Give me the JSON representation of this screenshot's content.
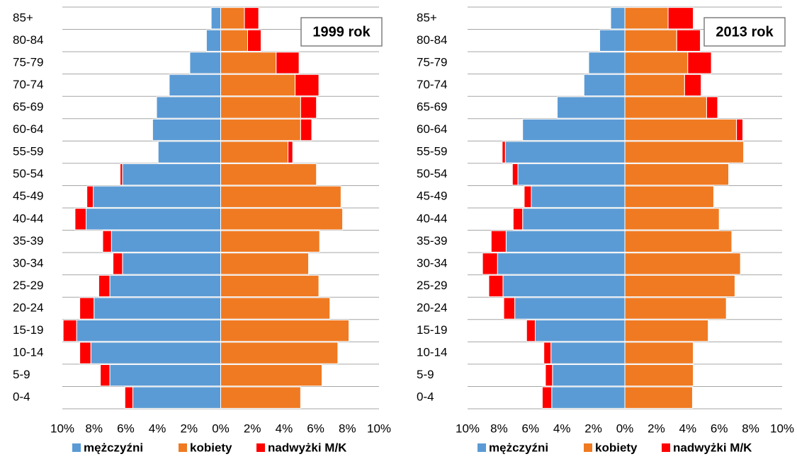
{
  "chart_data": [
    {
      "type": "pyramid",
      "title": "1999 rok",
      "categories": [
        "0-4",
        "5-9",
        "10-14",
        "15-19",
        "20-24",
        "25-29",
        "30-34",
        "35-39",
        "40-44",
        "45-49",
        "50-54",
        "55-59",
        "60-64",
        "65-69",
        "70-74",
        "75-79",
        "80-84",
        "85+"
      ],
      "series": [
        {
          "name": "mężczyźni",
          "color": "#5b9bd5",
          "values": [
            -5.55,
            -7.0,
            -8.2,
            -9.1,
            -8.0,
            -7.0,
            -6.2,
            -6.9,
            -8.5,
            -8.05,
            -6.2,
            -3.95,
            -4.3,
            -4.05,
            -3.25,
            -1.95,
            -0.9,
            -0.6
          ]
        },
        {
          "name": "kobiety",
          "color": "#f07a22",
          "values": [
            5.05,
            6.4,
            7.4,
            8.1,
            6.9,
            6.2,
            5.55,
            6.25,
            7.7,
            7.6,
            6.05,
            4.25,
            5.05,
            5.05,
            4.7,
            3.5,
            1.7,
            1.5
          ]
        },
        {
          "name": "nadwyżki M/K",
          "color": "#ff0000",
          "values": [
            -0.5,
            -0.6,
            -0.7,
            -0.85,
            -0.9,
            -0.7,
            -0.6,
            -0.55,
            -0.7,
            -0.4,
            -0.15,
            0.3,
            0.7,
            1.0,
            1.5,
            1.45,
            0.85,
            0.9
          ]
        }
      ],
      "xlim": [
        -10,
        10
      ],
      "xticks": [
        {
          "value": -10,
          "label": "10%"
        },
        {
          "value": -8,
          "label": "8%"
        },
        {
          "value": -6,
          "label": "6%"
        },
        {
          "value": -4,
          "label": "4%"
        },
        {
          "value": -2,
          "label": "2%"
        },
        {
          "value": 0,
          "label": "0%"
        },
        {
          "value": 2,
          "label": "2%"
        },
        {
          "value": 4,
          "label": "4%"
        },
        {
          "value": 6,
          "label": "6%"
        },
        {
          "value": 8,
          "label": "8%"
        },
        {
          "value": 10,
          "label": "10%"
        }
      ],
      "legend": "bottom"
    },
    {
      "type": "pyramid",
      "title": "2013 rok",
      "categories": [
        "0-4",
        "5-9",
        "10-14",
        "15-19",
        "20-24",
        "25-29",
        "30-34",
        "35-39",
        "40-44",
        "45-49",
        "50-54",
        "55-59",
        "60-64",
        "65-69",
        "70-74",
        "75-79",
        "80-84",
        "85+"
      ],
      "series": [
        {
          "name": "mężczyźni",
          "color": "#5b9bd5",
          "values": [
            -4.65,
            -4.6,
            -4.7,
            -5.7,
            -7.0,
            -7.75,
            -8.1,
            -7.55,
            -6.5,
            -5.95,
            -6.8,
            -7.6,
            -6.5,
            -4.3,
            -2.6,
            -2.3,
            -1.6,
            -0.9
          ]
        },
        {
          "name": "kobiety",
          "color": "#f07a22",
          "values": [
            4.3,
            4.35,
            4.35,
            5.3,
            6.45,
            7.0,
            7.35,
            6.8,
            6.0,
            5.65,
            6.6,
            7.55,
            7.1,
            5.2,
            3.8,
            4.0,
            3.3,
            2.75
          ]
        },
        {
          "name": "nadwyżki M/K",
          "color": "#ff0000",
          "values": [
            -0.6,
            -0.45,
            -0.45,
            -0.55,
            -0.7,
            -0.9,
            -0.95,
            -0.95,
            -0.6,
            -0.45,
            -0.35,
            -0.2,
            0.4,
            0.7,
            1.05,
            1.5,
            1.5,
            1.6
          ]
        }
      ],
      "xlim": [
        -10,
        10
      ],
      "xticks": [
        {
          "value": -10,
          "label": "10%"
        },
        {
          "value": -8,
          "label": "8%"
        },
        {
          "value": -6,
          "label": "6%"
        },
        {
          "value": -4,
          "label": "4%"
        },
        {
          "value": -2,
          "label": "2%"
        },
        {
          "value": 0,
          "label": "0%"
        },
        {
          "value": 2,
          "label": "2%"
        },
        {
          "value": 4,
          "label": "4%"
        },
        {
          "value": 6,
          "label": "6%"
        },
        {
          "value": 8,
          "label": "8%"
        },
        {
          "value": 10,
          "label": "10%"
        }
      ],
      "legend": "bottom"
    }
  ]
}
